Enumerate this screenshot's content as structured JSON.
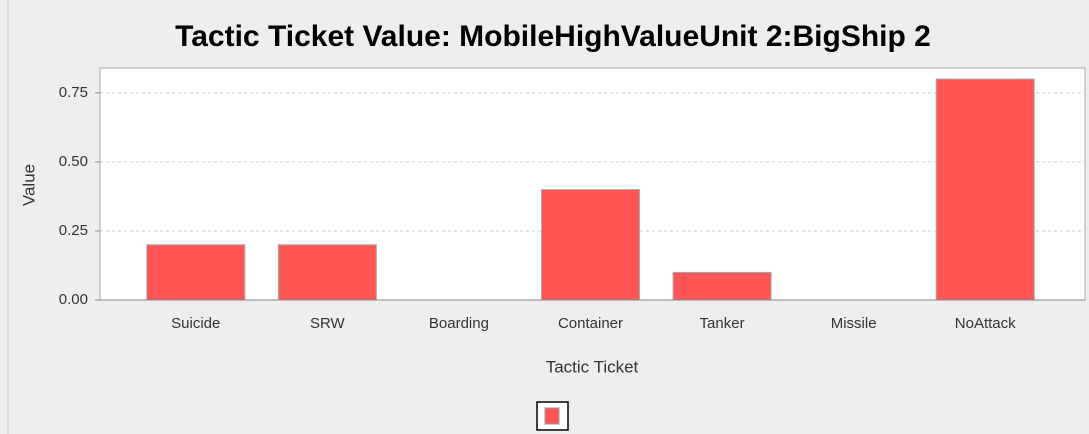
{
  "chart_data": {
    "type": "bar",
    "title": "Tactic Ticket Value: MobileHighValueUnit 2:BigShip 2",
    "x_label": "Tactic Ticket",
    "y_label": "Value",
    "categories": [
      "Suicide",
      "SRW",
      "Boarding",
      "Container",
      "Tanker",
      "Missile",
      "NoAttack"
    ],
    "values": [
      0.2,
      0.2,
      0,
      0.4,
      0.1,
      0,
      0.8
    ],
    "color": "#ff5555",
    "ylim": [
      0,
      0.84
    ],
    "yticks": [
      {
        "value": 0,
        "label": "0.00"
      },
      {
        "value": 0.25,
        "label": "0.25"
      },
      {
        "value": 0.5,
        "label": "0.50"
      },
      {
        "value": 0.75,
        "label": "0.75"
      }
    ],
    "grid": true
  }
}
